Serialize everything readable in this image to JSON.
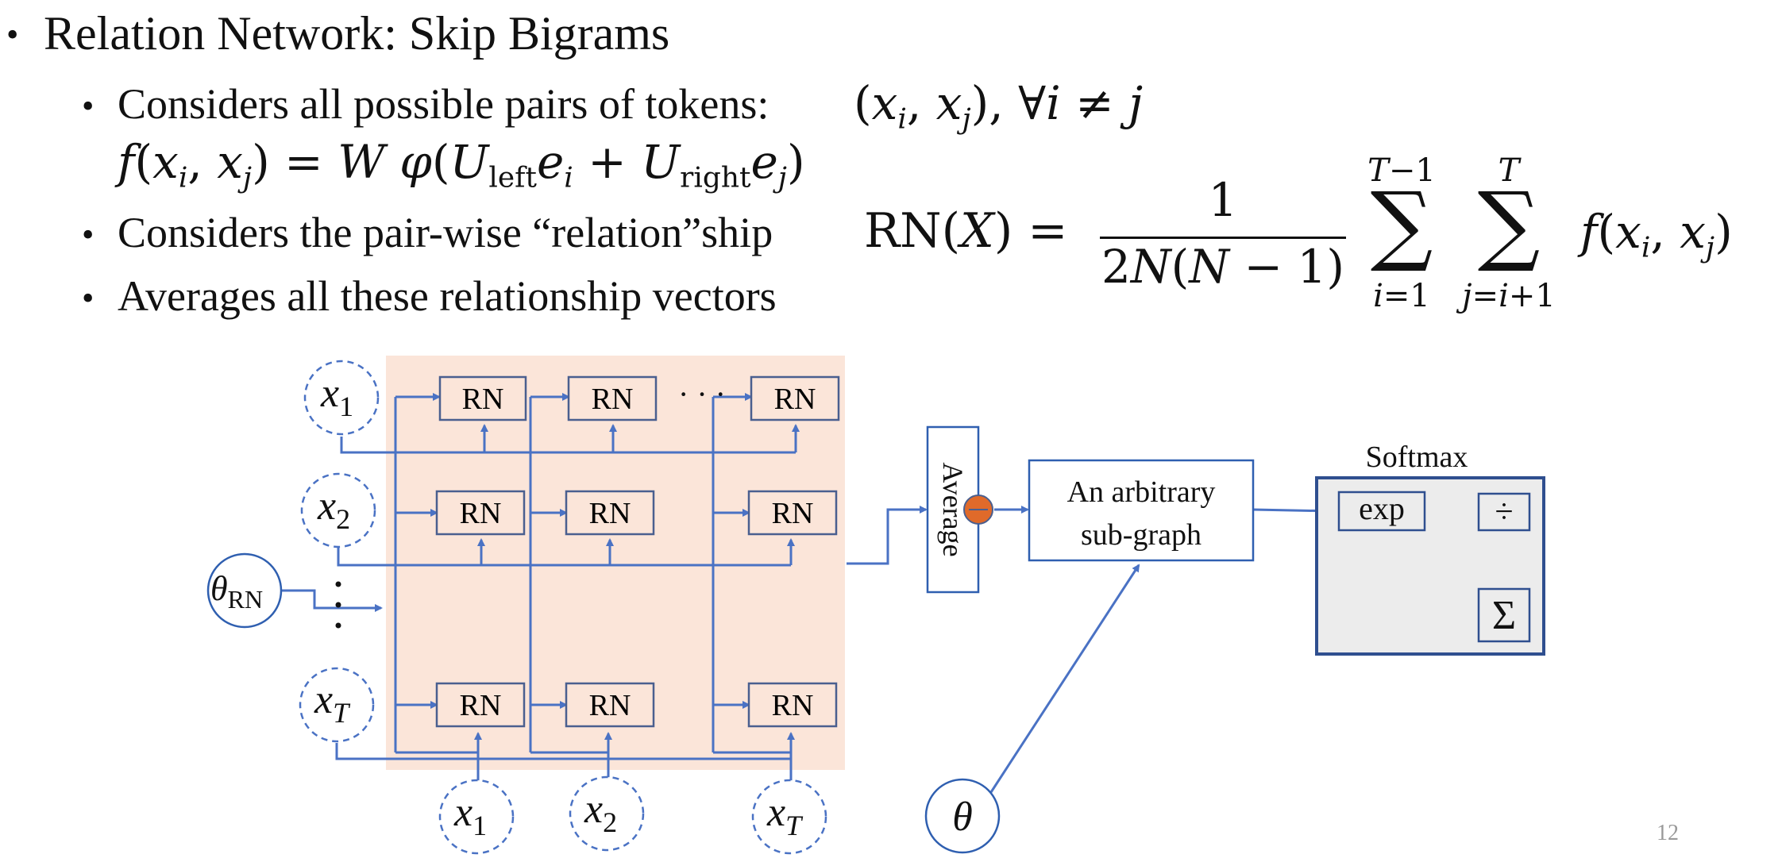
{
  "title": "Relation Network: Skip Bigrams",
  "bullets": [
    "Considers all possible pairs of tokens:",
    "Considers the pair-wise “relation”ship",
    "Averages all these relationship vectors"
  ],
  "formulas": {
    "pairs": "(x_i, x_j), ∀i ≠ j",
    "f_def": "f(x_i, x_j) = W φ(U_left e_i + U_right e_j)",
    "rn_def": "RN(X) = 1 / (2N(N−1)) Σ_{i=1}^{T−1} Σ_{j=i+1}^{T} f(x_i, x_j)"
  },
  "diagram": {
    "rn_label": "RN",
    "dots": "· · ·",
    "average_label": "Average",
    "subgraph_label_line1": "An arbitrary",
    "subgraph_label_line2": "sub-graph",
    "softmax_label": "Softmax",
    "exp_label": "exp",
    "div_label": "÷",
    "sum_label": "Σ",
    "theta_label": "θ",
    "theta_rn_label": "θ",
    "theta_rn_sub": "RN",
    "x_label": "x",
    "subs": [
      "1",
      "2",
      "T"
    ],
    "colors": {
      "grid_bg": "#fbe5d9",
      "line_blue": "#4a72c4",
      "box_border": "#4a5f8f",
      "softmax_bg": "#ececec",
      "softmax_border": "#2f4f8f",
      "plus_node": "#e06a2a"
    }
  },
  "page_number": "12"
}
